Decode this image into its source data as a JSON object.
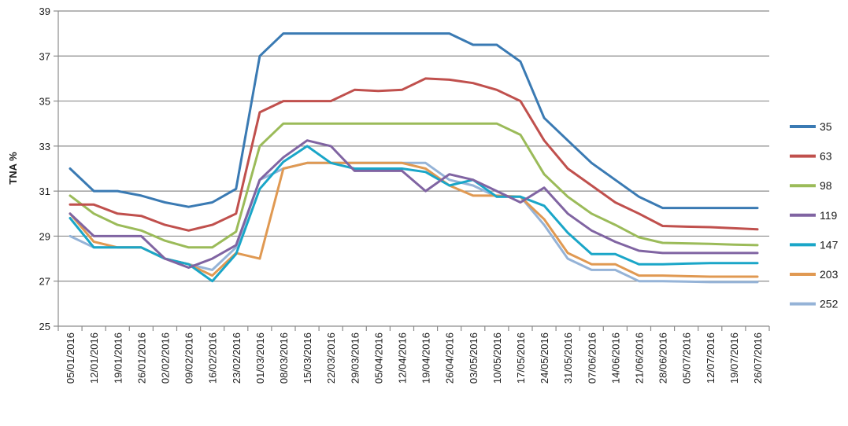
{
  "chart_data": {
    "type": "line",
    "ylabel": "TNA %",
    "xlabel": "",
    "ylim": [
      25,
      39
    ],
    "yticks": [
      25,
      27,
      29,
      31,
      33,
      35,
      37,
      39
    ],
    "grid": true,
    "legend_position": "right",
    "categories": [
      "05/01/2016",
      "12/01/2016",
      "19/01/2016",
      "26/01/2016",
      "02/02/2016",
      "09/02/2016",
      "16/02/2016",
      "23/02/2016",
      "01/03/2016",
      "08/03/2016",
      "15/03/2016",
      "22/03/2016",
      "29/03/2016",
      "05/04/2016",
      "12/04/2016",
      "19/04/2016",
      "26/04/2016",
      "03/05/2016",
      "10/05/2016",
      "17/05/2016",
      "24/05/2016",
      "31/05/2016",
      "07/06/2016",
      "14/06/2016",
      "21/06/2016",
      "28/06/2016",
      "05/07/2016",
      "12/07/2016",
      "19/07/2016",
      "26/07/2016"
    ],
    "series": [
      {
        "name": "35",
        "color": "#3a7ab3",
        "values": [
          32.0,
          31.0,
          31.0,
          30.8,
          30.5,
          30.3,
          30.5,
          31.1,
          37.0,
          38.0,
          38.0,
          38.0,
          38.0,
          38.0,
          38.0,
          38.0,
          38.0,
          37.5,
          37.5,
          36.75,
          34.25,
          33.25,
          32.25,
          31.5,
          30.75,
          30.25,
          30.25,
          30.25,
          30.25,
          30.25
        ]
      },
      {
        "name": "63",
        "color": "#c0504d",
        "values": [
          30.4,
          30.4,
          30.0,
          29.9,
          29.5,
          29.25,
          29.5,
          30.0,
          34.5,
          35.0,
          35.0,
          35.0,
          35.5,
          35.45,
          35.5,
          36.0,
          35.95,
          35.8,
          35.5,
          35.0,
          33.25,
          32.0,
          31.25,
          30.5,
          30.0,
          29.45,
          29.42,
          29.4,
          29.35,
          29.3
        ]
      },
      {
        "name": "98",
        "color": "#9bbb59",
        "values": [
          30.8,
          30.0,
          29.5,
          29.25,
          28.8,
          28.5,
          28.5,
          29.2,
          33.0,
          34.0,
          34.0,
          34.0,
          34.0,
          34.0,
          34.0,
          34.0,
          34.0,
          34.0,
          34.0,
          33.5,
          31.75,
          30.75,
          30.0,
          29.5,
          28.95,
          28.7,
          28.68,
          28.66,
          28.62,
          28.6
        ]
      },
      {
        "name": "119",
        "color": "#8064a2",
        "values": [
          30.0,
          29.0,
          29.0,
          29.0,
          28.0,
          27.6,
          28.0,
          28.6,
          31.5,
          32.5,
          33.25,
          33.0,
          31.9,
          31.9,
          31.9,
          31.0,
          31.75,
          31.5,
          31.0,
          30.5,
          31.15,
          30.0,
          29.25,
          28.75,
          28.35,
          28.25,
          28.25,
          28.25,
          28.25,
          28.25
        ]
      },
      {
        "name": "147",
        "color": "#1aa6c8",
        "values": [
          29.8,
          28.5,
          28.5,
          28.5,
          28.0,
          27.75,
          27.0,
          28.2,
          31.1,
          32.3,
          33.0,
          32.25,
          32.0,
          32.0,
          32.0,
          31.85,
          31.25,
          31.5,
          30.75,
          30.75,
          30.35,
          29.15,
          28.2,
          28.2,
          27.75,
          27.75,
          27.78,
          27.8,
          27.8,
          27.8
        ]
      },
      {
        "name": "203",
        "color": "#e09952",
        "values": [
          30.0,
          28.75,
          28.5,
          28.5,
          28.0,
          27.75,
          27.25,
          28.25,
          28.0,
          32.0,
          32.25,
          32.25,
          32.25,
          32.25,
          32.25,
          32.0,
          31.25,
          30.8,
          30.8,
          30.75,
          29.75,
          28.25,
          27.75,
          27.75,
          27.25,
          27.25,
          27.22,
          27.2,
          27.2,
          27.2
        ]
      },
      {
        "name": "252",
        "color": "#95b3d7",
        "values": [
          29.0,
          28.5,
          28.5,
          28.5,
          28.0,
          27.75,
          27.5,
          28.5,
          31.5,
          32.0,
          32.25,
          32.25,
          32.25,
          32.25,
          32.25,
          32.25,
          31.5,
          31.25,
          30.75,
          30.75,
          29.5,
          28.0,
          27.5,
          27.5,
          27.0,
          27.0,
          26.98,
          26.96,
          26.96,
          26.96
        ]
      }
    ]
  }
}
